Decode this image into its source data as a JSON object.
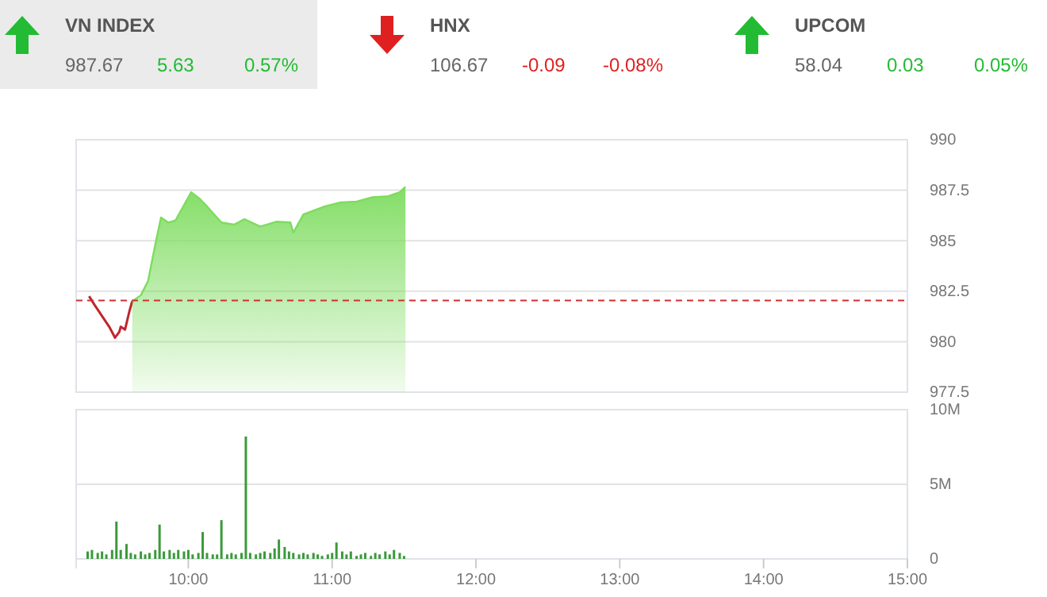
{
  "chart_data": [
    {
      "type": "other",
      "title": "VN INDEX",
      "annotations": [
        "987.67",
        "5.63",
        "0.57%"
      ],
      "color": "#22bb33"
    },
    {
      "type": "other",
      "title": "HNX",
      "annotations": [
        "106.67",
        "-0.09",
        "-0.08%"
      ],
      "color": "#e02020"
    },
    {
      "type": "other",
      "title": "UPCOM",
      "annotations": [
        "58.04",
        "0.03",
        "0.05%"
      ],
      "color": "#22bb33"
    },
    {
      "type": "area",
      "xlim": [
        9.22,
        15
      ],
      "ylim": [
        977.5,
        990
      ],
      "yticks": [
        977.5,
        980,
        982.5,
        985,
        987.5,
        990
      ],
      "grid": "y",
      "tick_labels": "y",
      "ref_lines": [
        {
          "axis": "y",
          "value": 982.04,
          "color": "#d03030",
          "line_style": "dashed"
        }
      ],
      "series": [
        {
          "type": "line",
          "color": "#c0262d",
          "x": [
            9.31,
            9.35,
            9.45,
            9.49,
            9.52,
            9.53,
            9.56,
            9.59,
            9.61
          ],
          "values": [
            982.25,
            981.8,
            980.74,
            980.2,
            980.48,
            980.74,
            980.6,
            981.5,
            982.0
          ]
        },
        {
          "type": "area",
          "color": "#7ddc5e",
          "x": [
            9.61,
            9.67,
            9.72,
            9.77,
            9.81,
            9.86,
            9.91,
            10.02,
            10.08,
            10.13,
            10.23,
            10.32,
            10.39,
            10.5,
            10.61,
            10.71,
            10.73,
            10.8,
            10.95,
            11.06,
            11.17,
            11.28,
            11.39,
            11.47,
            11.51
          ],
          "values": [
            982.0,
            982.3,
            983.0,
            984.8,
            986.15,
            985.9,
            986.0,
            987.4,
            987.07,
            986.7,
            985.9,
            985.8,
            986.07,
            985.7,
            985.94,
            985.9,
            985.4,
            986.3,
            986.7,
            986.9,
            986.94,
            987.15,
            987.2,
            987.4,
            987.67
          ]
        }
      ]
    },
    {
      "type": "bar",
      "xlim": [
        9.22,
        15
      ],
      "xticks": [
        {
          "value": 10,
          "label": "10:00"
        },
        {
          "value": 11,
          "label": "11:00"
        },
        {
          "value": 12,
          "label": "12:00"
        },
        {
          "value": 13,
          "label": "13:00"
        },
        {
          "value": 14,
          "label": "14:00"
        },
        {
          "value": 15,
          "label": "15:00"
        }
      ],
      "ylim": [
        0,
        10
      ],
      "yticks": [
        0,
        {
          "value": 5,
          "label": "5M"
        },
        {
          "value": 10,
          "label": "10M"
        }
      ],
      "grid": "y",
      "color": "#3a9a3a",
      "x": [
        9.3,
        9.33,
        9.37,
        9.4,
        9.43,
        9.47,
        9.5,
        9.53,
        9.57,
        9.6,
        9.63,
        9.67,
        9.7,
        9.73,
        9.77,
        9.8,
        9.83,
        9.87,
        9.9,
        9.93,
        9.97,
        10.0,
        10.03,
        10.07,
        10.1,
        10.13,
        10.17,
        10.2,
        10.23,
        10.27,
        10.3,
        10.33,
        10.37,
        10.4,
        10.43,
        10.47,
        10.5,
        10.53,
        10.57,
        10.6,
        10.63,
        10.67,
        10.7,
        10.73,
        10.77,
        10.8,
        10.83,
        10.87,
        10.9,
        10.93,
        10.97,
        11.0,
        11.03,
        11.07,
        11.1,
        11.13,
        11.17,
        11.2,
        11.23,
        11.27,
        11.3,
        11.33,
        11.37,
        11.4,
        11.43,
        11.47,
        11.5
      ],
      "values": [
        0.5,
        0.6,
        0.4,
        0.5,
        0.3,
        0.6,
        2.5,
        0.6,
        1.0,
        0.4,
        0.3,
        0.5,
        0.3,
        0.4,
        0.6,
        2.3,
        0.5,
        0.6,
        0.4,
        0.6,
        0.5,
        0.6,
        0.3,
        0.4,
        1.8,
        0.4,
        0.3,
        0.3,
        2.6,
        0.3,
        0.4,
        0.3,
        0.4,
        8.2,
        0.4,
        0.3,
        0.4,
        0.5,
        0.4,
        0.7,
        1.3,
        0.8,
        0.5,
        0.4,
        0.3,
        0.4,
        0.3,
        0.4,
        0.3,
        0.2,
        0.3,
        0.4,
        1.1,
        0.5,
        0.3,
        0.5,
        0.2,
        0.3,
        0.4,
        0.2,
        0.4,
        0.3,
        0.5,
        0.3,
        0.6,
        0.4,
        0.2
      ]
    }
  ]
}
